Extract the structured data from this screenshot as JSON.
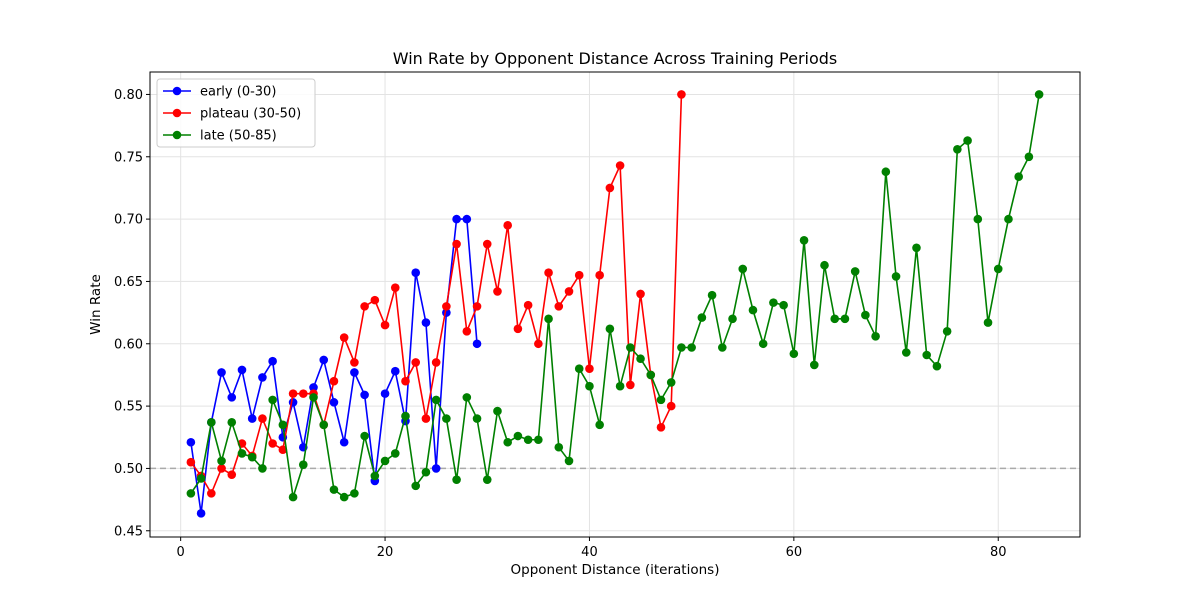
{
  "chart_data": {
    "type": "line",
    "title": "Win Rate by Opponent Distance Across Training Periods",
    "xlabel": "Opponent Distance (iterations)",
    "ylabel": "Win Rate",
    "xlim": [
      -3,
      88
    ],
    "ylim": [
      0.445,
      0.818
    ],
    "xticks": [
      0,
      20,
      40,
      60,
      80
    ],
    "yticks": [
      0.45,
      0.5,
      0.55,
      0.6,
      0.65,
      0.7,
      0.75,
      0.8
    ],
    "ytick_labels": [
      "0.45",
      "0.50",
      "0.55",
      "0.60",
      "0.65",
      "0.70",
      "0.75",
      "0.80"
    ],
    "grid": true,
    "legend_position": "top-left",
    "reference_line": {
      "y": 0.5,
      "style": "dashed",
      "color": "#aaaaaa"
    },
    "series": [
      {
        "name": "early (0-30)",
        "color": "#0000ff",
        "x": [
          1,
          2,
          3,
          4,
          5,
          6,
          7,
          8,
          9,
          10,
          11,
          12,
          13,
          14,
          15,
          16,
          17,
          18,
          19,
          20,
          21,
          22,
          23,
          24,
          25,
          26,
          27,
          28,
          29
        ],
        "y": [
          0.521,
          0.464,
          0.537,
          0.577,
          0.557,
          0.579,
          0.54,
          0.573,
          0.586,
          0.525,
          0.553,
          0.517,
          0.565,
          0.587,
          0.553,
          0.521,
          0.577,
          0.559,
          0.49,
          0.56,
          0.578,
          0.538,
          0.657,
          0.617,
          0.5,
          0.625,
          0.7,
          0.7,
          0.6
        ]
      },
      {
        "name": "plateau (30-50)",
        "color": "#ff0000",
        "x": [
          1,
          2,
          3,
          4,
          5,
          6,
          7,
          8,
          9,
          10,
          11,
          12,
          13,
          14,
          15,
          16,
          17,
          18,
          19,
          20,
          21,
          22,
          23,
          24,
          25,
          26,
          27,
          28,
          29,
          30,
          31,
          32,
          33,
          34,
          35,
          36,
          37,
          38,
          39,
          40,
          41,
          42,
          43,
          44,
          45,
          46,
          47,
          48,
          49
        ],
        "y": [
          0.505,
          0.494,
          0.48,
          0.5,
          0.495,
          0.52,
          0.51,
          0.54,
          0.52,
          0.515,
          0.56,
          0.56,
          0.56,
          0.535,
          0.57,
          0.605,
          0.585,
          0.63,
          0.635,
          0.615,
          0.645,
          0.57,
          0.585,
          0.54,
          0.585,
          0.63,
          0.68,
          0.61,
          0.63,
          0.68,
          0.642,
          0.695,
          0.612,
          0.631,
          0.6,
          0.657,
          0.63,
          0.642,
          0.655,
          0.58,
          0.655,
          0.725,
          0.743,
          0.567,
          0.64,
          0.575,
          0.533,
          0.55,
          0.8
        ]
      },
      {
        "name": "late (50-85)",
        "color": "#008000",
        "x": [
          1,
          2,
          3,
          4,
          5,
          6,
          7,
          8,
          9,
          10,
          11,
          12,
          13,
          14,
          15,
          16,
          17,
          18,
          19,
          20,
          21,
          22,
          23,
          24,
          25,
          26,
          27,
          28,
          29,
          30,
          31,
          32,
          33,
          34,
          35,
          36,
          37,
          38,
          39,
          40,
          41,
          42,
          43,
          44,
          45,
          46,
          47,
          48,
          49,
          50,
          51,
          52,
          53,
          54,
          55,
          56,
          57,
          58,
          59,
          60,
          61,
          62,
          63,
          64,
          65,
          66,
          67,
          68,
          69,
          70,
          71,
          72,
          73,
          74,
          75,
          76,
          77,
          78,
          79,
          80,
          81,
          82,
          83,
          84
        ],
        "y": [
          0.48,
          0.492,
          0.537,
          0.506,
          0.537,
          0.512,
          0.509,
          0.5,
          0.555,
          0.535,
          0.477,
          0.503,
          0.557,
          0.535,
          0.483,
          0.477,
          0.48,
          0.526,
          0.494,
          0.506,
          0.512,
          0.542,
          0.486,
          0.497,
          0.555,
          0.54,
          0.491,
          0.557,
          0.54,
          0.491,
          0.546,
          0.521,
          0.526,
          0.523,
          0.523,
          0.62,
          0.517,
          0.506,
          0.58,
          0.566,
          0.535,
          0.612,
          0.566,
          0.597,
          0.588,
          0.575,
          0.555,
          0.569,
          0.597,
          0.597,
          0.621,
          0.639,
          0.597,
          0.62,
          0.66,
          0.627,
          0.6,
          0.633,
          0.631,
          0.592,
          0.683,
          0.583,
          0.663,
          0.62,
          0.62,
          0.658,
          0.623,
          0.606,
          0.738,
          0.654,
          0.593,
          0.677,
          0.591,
          0.582,
          0.61,
          0.756,
          0.763,
          0.7,
          0.617,
          0.66,
          0.7,
          0.734,
          0.75,
          0.8
        ]
      }
    ]
  }
}
